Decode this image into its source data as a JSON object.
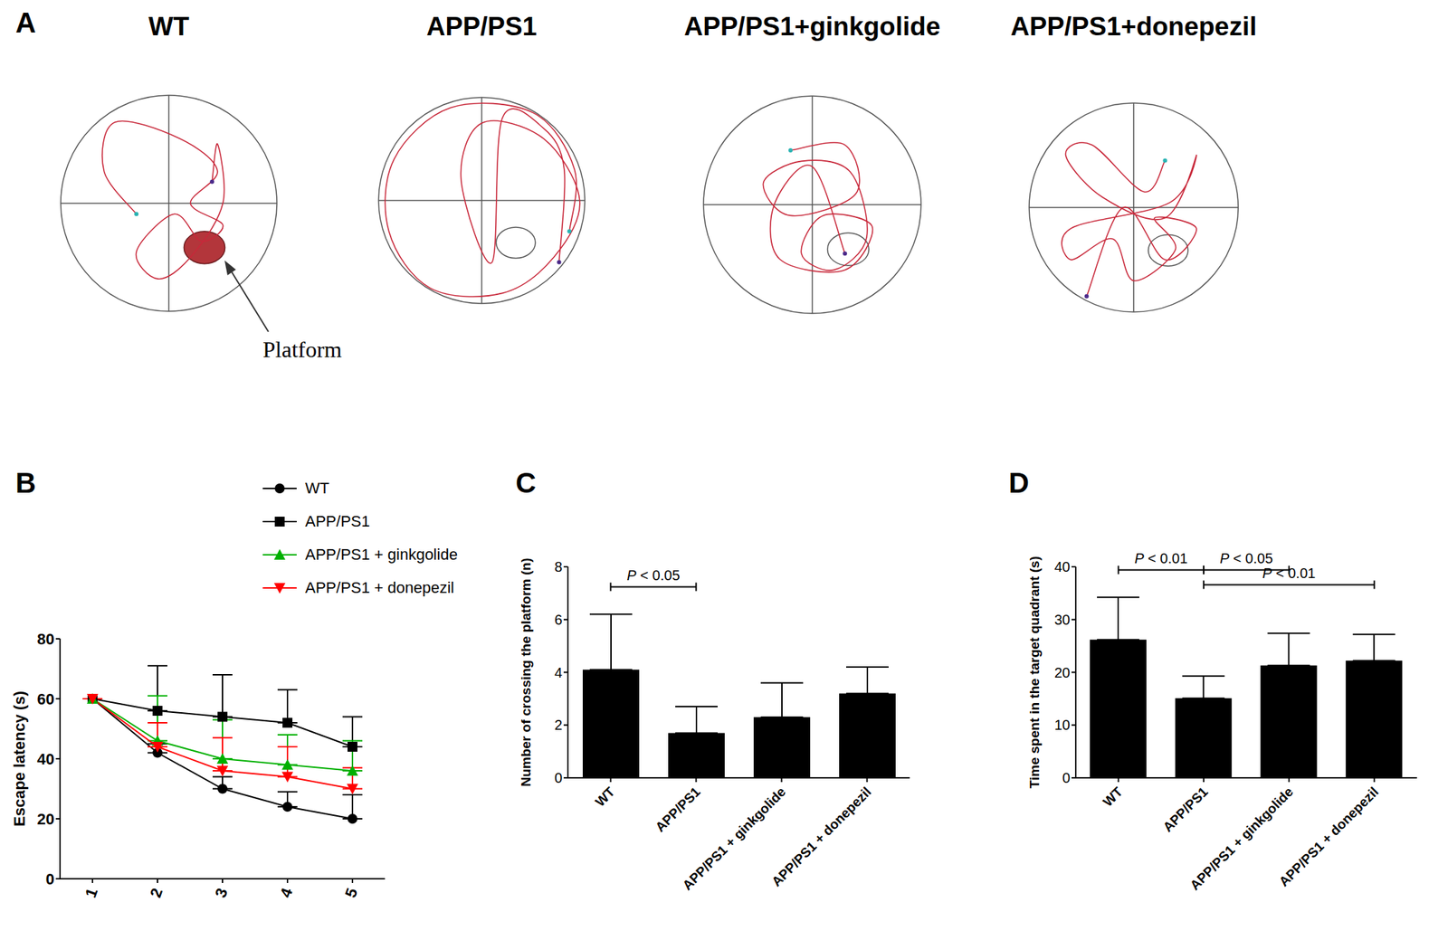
{
  "panel_a": {
    "panel": "A",
    "groups": [
      "WT",
      "APP/PS1",
      "APP/PS1+ginkgolide",
      "APP/PS1+donepezil"
    ],
    "annotation": "Platform"
  },
  "chart_data": [
    {
      "panel": "B",
      "type": "line",
      "x": [
        1,
        2,
        3,
        4,
        5
      ],
      "xlim": [
        0.5,
        5.5
      ],
      "xticks": [
        1,
        2,
        3,
        4,
        5
      ],
      "y_label": "Escape latency (s)",
      "ylim": [
        0,
        80
      ],
      "yticks": [
        0,
        20,
        40,
        60,
        80
      ],
      "legend": "top",
      "series": [
        {
          "name": "WT",
          "color": "#000000",
          "marker": "circle",
          "values": [
            60,
            42,
            30,
            24,
            20
          ],
          "errors": [
            0,
            3,
            4,
            5,
            8
          ]
        },
        {
          "name": "APP/PS1",
          "color": "#000000",
          "marker": "square",
          "values": [
            60,
            56,
            54,
            52,
            44
          ],
          "errors": [
            0,
            15,
            14,
            11,
            10
          ]
        },
        {
          "name": "APP/PS1 + ginkgolide",
          "color": "#00b000",
          "marker": "triangle",
          "values": [
            60,
            46,
            40,
            38,
            36
          ],
          "errors": [
            0,
            15,
            13,
            10,
            10
          ]
        },
        {
          "name": "APP/PS1 + donepezil",
          "color": "#ff0000",
          "marker": "triangle-down",
          "values": [
            60,
            44,
            36,
            34,
            30
          ],
          "errors": [
            0,
            8,
            11,
            10,
            7
          ]
        }
      ]
    },
    {
      "panel": "C",
      "type": "bar",
      "categories": [
        "WT",
        "APP/PS1",
        "APP/PS1 + ginkgolide",
        "APP/PS1 + donepezil"
      ],
      "values": [
        4.1,
        1.7,
        2.3,
        3.2
      ],
      "errors": [
        2.1,
        1.0,
        1.3,
        1.0
      ],
      "color": "#000000",
      "y_label": "Number of crossing the platform (n)",
      "ylim": [
        0,
        8
      ],
      "yticks": [
        0,
        2,
        4,
        6,
        8
      ],
      "comparisons": [
        {
          "from": "WT",
          "to": "APP/PS1",
          "label": "P < 0.05"
        }
      ]
    },
    {
      "panel": "D",
      "type": "bar",
      "categories": [
        "WT",
        "APP/PS1",
        "APP/PS1 + ginkgolide",
        "APP/PS1 + donepezil"
      ],
      "values": [
        26.2,
        15.1,
        21.3,
        22.2
      ],
      "errors": [
        8.0,
        4.2,
        6.1,
        5.0
      ],
      "color": "#000000",
      "y_label": "Time spent in the target quadrant (s)",
      "ylim": [
        0,
        40
      ],
      "yticks": [
        0,
        10,
        20,
        30,
        40
      ],
      "comparisons": [
        {
          "from": "WT",
          "to": "APP/PS1",
          "label": "P < 0.01"
        },
        {
          "from": "APP/PS1",
          "to": "APP/PS1 + ginkgolide",
          "label": "P < 0.05"
        },
        {
          "from": "APP/PS1",
          "to": "APP/PS1 + donepezil",
          "label": "P < 0.01"
        }
      ]
    }
  ]
}
